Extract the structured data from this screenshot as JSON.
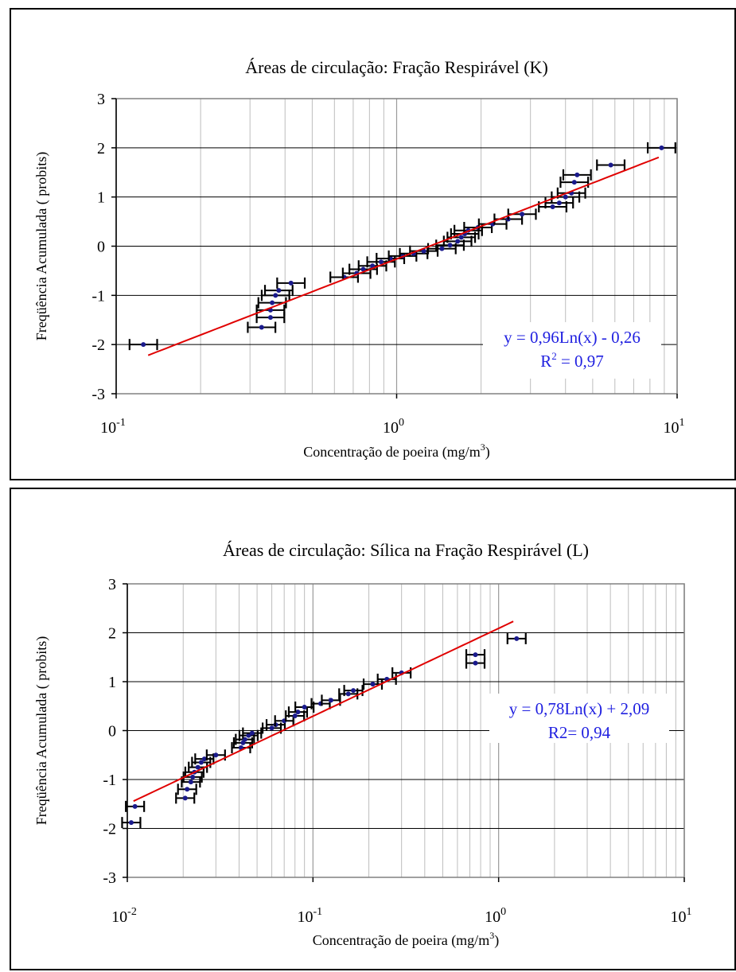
{
  "chart_data": [
    {
      "type": "scatter",
      "title": "Áreas de circulação: Fração Respirável  (K)",
      "xlabel": "Concentração de poeira (mg/m",
      "xlabel_sup": "3",
      "xlabel_end": ")",
      "ylabel": "Freqüência Acumulada ( probits)",
      "x_scale": "log",
      "xlim": [
        0.1,
        10
      ],
      "ylim": [
        -3,
        3
      ],
      "yticks": [
        3,
        2,
        1,
        0,
        -1,
        -2,
        -3
      ],
      "xticks": [
        {
          "base": "10",
          "exp": "-1",
          "value": 0.1
        },
        {
          "base": "10",
          "exp": "0",
          "value": 1
        },
        {
          "base": "10",
          "exp": "1",
          "value": 10
        }
      ],
      "grid": true,
      "marker_color": "#1a1a8c",
      "errorbar_color": "#000000",
      "trend_color": "#e00000",
      "error_factor": 1.12,
      "trendline": {
        "slope": 0.96,
        "intercept": -0.26,
        "x_from": 0.13,
        "x_to": 8.6
      },
      "annotation_line1": "y = 0,96Ln(x) - 0,26",
      "annotation_line2_pre": "R",
      "annotation_line2_sup": "2",
      "annotation_line2_post": " = 0,97",
      "annotation_color": "#2020e0",
      "points": [
        {
          "x": 0.125,
          "y": -2.0
        },
        {
          "x": 0.33,
          "y": -1.65
        },
        {
          "x": 0.355,
          "y": -1.45
        },
        {
          "x": 0.355,
          "y": -1.3
        },
        {
          "x": 0.36,
          "y": -1.15
        },
        {
          "x": 0.37,
          "y": -1.0
        },
        {
          "x": 0.38,
          "y": -0.9
        },
        {
          "x": 0.42,
          "y": -0.75
        },
        {
          "x": 0.65,
          "y": -0.63
        },
        {
          "x": 0.72,
          "y": -0.55
        },
        {
          "x": 0.76,
          "y": -0.47
        },
        {
          "x": 0.82,
          "y": -0.4
        },
        {
          "x": 0.88,
          "y": -0.32
        },
        {
          "x": 0.95,
          "y": -0.25
        },
        {
          "x": 1.05,
          "y": -0.2
        },
        {
          "x": 1.15,
          "y": -0.15
        },
        {
          "x": 1.25,
          "y": -0.1
        },
        {
          "x": 1.45,
          "y": -0.05
        },
        {
          "x": 1.55,
          "y": 0.02
        },
        {
          "x": 1.65,
          "y": 0.1
        },
        {
          "x": 1.7,
          "y": 0.18
        },
        {
          "x": 1.75,
          "y": 0.25
        },
        {
          "x": 1.8,
          "y": 0.32
        },
        {
          "x": 1.95,
          "y": 0.38
        },
        {
          "x": 2.2,
          "y": 0.45
        },
        {
          "x": 2.5,
          "y": 0.55
        },
        {
          "x": 2.8,
          "y": 0.65
        },
        {
          "x": 3.6,
          "y": 0.8
        },
        {
          "x": 3.8,
          "y": 0.88
        },
        {
          "x": 4.0,
          "y": 1.0
        },
        {
          "x": 4.2,
          "y": 1.08
        },
        {
          "x": 4.3,
          "y": 1.3
        },
        {
          "x": 4.4,
          "y": 1.45
        },
        {
          "x": 5.8,
          "y": 1.65
        },
        {
          "x": 8.8,
          "y": 2.0
        }
      ]
    },
    {
      "type": "scatter",
      "title": "Áreas de circulação: Sílica na Fração Respirável  (L)",
      "xlabel": "Concentração de poeira (mg/m",
      "xlabel_sup": "3",
      "xlabel_end": ")",
      "ylabel": "Freqüência Acumulada ( probits)",
      "x_scale": "log",
      "xlim": [
        0.01,
        10
      ],
      "ylim": [
        -3,
        3
      ],
      "yticks": [
        3,
        2,
        1,
        0,
        -1,
        -2,
        -3
      ],
      "xticks": [
        {
          "base": "10",
          "exp": "-2",
          "value": 0.01
        },
        {
          "base": "10",
          "exp": "-1",
          "value": 0.1
        },
        {
          "base": "10",
          "exp": "0",
          "value": 1
        },
        {
          "base": "10",
          "exp": "1",
          "value": 10
        }
      ],
      "grid": true,
      "marker_color": "#1a1a8c",
      "errorbar_color": "#000000",
      "trend_color": "#e00000",
      "error_factor": 1.12,
      "trendline": {
        "slope": 0.78,
        "intercept": 2.09,
        "x_from": 0.0108,
        "x_to": 1.2
      },
      "annotation_line1": "y = 0,78Ln(x) + 2,09",
      "annotation_line2_pre": "R2= 0,94",
      "annotation_line2_sup": "",
      "annotation_line2_post": "",
      "annotation_color": "#2020e0",
      "points": [
        {
          "x": 0.0105,
          "y": -1.88
        },
        {
          "x": 0.011,
          "y": -1.55
        },
        {
          "x": 0.0205,
          "y": -1.38
        },
        {
          "x": 0.021,
          "y": -1.2
        },
        {
          "x": 0.022,
          "y": -1.05
        },
        {
          "x": 0.0225,
          "y": -0.95
        },
        {
          "x": 0.023,
          "y": -0.85
        },
        {
          "x": 0.024,
          "y": -0.75
        },
        {
          "x": 0.025,
          "y": -0.65
        },
        {
          "x": 0.026,
          "y": -0.58
        },
        {
          "x": 0.03,
          "y": -0.5
        },
        {
          "x": 0.041,
          "y": -0.35
        },
        {
          "x": 0.042,
          "y": -0.25
        },
        {
          "x": 0.043,
          "y": -0.18
        },
        {
          "x": 0.045,
          "y": -0.1
        },
        {
          "x": 0.047,
          "y": -0.05
        },
        {
          "x": 0.06,
          "y": 0.05
        },
        {
          "x": 0.063,
          "y": 0.12
        },
        {
          "x": 0.07,
          "y": 0.2
        },
        {
          "x": 0.08,
          "y": 0.3
        },
        {
          "x": 0.083,
          "y": 0.38
        },
        {
          "x": 0.09,
          "y": 0.48
        },
        {
          "x": 0.11,
          "y": 0.55
        },
        {
          "x": 0.125,
          "y": 0.62
        },
        {
          "x": 0.155,
          "y": 0.75
        },
        {
          "x": 0.165,
          "y": 0.82
        },
        {
          "x": 0.21,
          "y": 0.95
        },
        {
          "x": 0.25,
          "y": 1.05
        },
        {
          "x": 0.3,
          "y": 1.18
        },
        {
          "x": 0.75,
          "y": 1.38
        },
        {
          "x": 0.75,
          "y": 1.55
        },
        {
          "x": 1.25,
          "y": 1.88
        }
      ]
    }
  ]
}
